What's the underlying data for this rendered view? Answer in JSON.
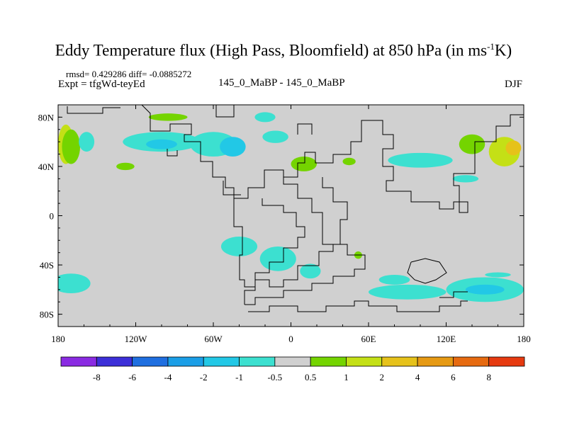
{
  "title": {
    "main": "Eddy Temperature flux (High Pass, Bloomfield) at 850 hPa (in ms",
    "sup": "-1",
    "end": "K)"
  },
  "stats": "rmsd= 0.429286 diff= -0.0885272",
  "expt": "Expt = tfgWd-teyEd",
  "diff_label": "145_0_MaBP - 145_0_MaBP",
  "season": "DJF",
  "chart_data": {
    "type": "heatmap",
    "title": "Eddy Temperature flux (High Pass, Bloomfield) at 850 hPa (in ms-1K)",
    "xlabel": "",
    "ylabel": "",
    "x_ticks": [
      {
        "value": -180,
        "label": "180"
      },
      {
        "value": -120,
        "label": "120W"
      },
      {
        "value": -60,
        "label": "60W"
      },
      {
        "value": 0,
        "label": "0"
      },
      {
        "value": 60,
        "label": "60E"
      },
      {
        "value": 120,
        "label": "120E"
      },
      {
        "value": 180,
        "label": "180"
      }
    ],
    "y_ticks": [
      {
        "value": 80,
        "label": "80N"
      },
      {
        "value": 40,
        "label": "40N"
      },
      {
        "value": 0,
        "label": "0"
      },
      {
        "value": -40,
        "label": "40S"
      },
      {
        "value": -80,
        "label": "80S"
      }
    ],
    "xlim": [
      -180,
      180
    ],
    "ylim": [
      -90,
      90
    ],
    "background_color": "#d0d0d0",
    "colorbar": {
      "colors": [
        "#8a2be2",
        "#3c2fd8",
        "#1f6fe0",
        "#1a9ee6",
        "#22c8e6",
        "#3ce0d0",
        "#d0d0d0",
        "#74d400",
        "#c4e016",
        "#e6c21a",
        "#e69a14",
        "#e66a10",
        "#e63a10"
      ],
      "labels": [
        "-8",
        "-6",
        "-4",
        "-2",
        "-1",
        "-0.5",
        "0.5",
        "1",
        "2",
        "4",
        "6",
        "8"
      ]
    },
    "regions": [
      {
        "lon": -174,
        "lat": 58,
        "rlon": 6,
        "rlat": 16,
        "color": "#c4e016"
      },
      {
        "lon": -170,
        "lat": 56,
        "rlon": 7,
        "rlat": 14,
        "color": "#74d400"
      },
      {
        "lon": -158,
        "lat": 60,
        "rlon": 6,
        "rlat": 8,
        "color": "#3ce0d0"
      },
      {
        "lon": -128,
        "lat": 40,
        "rlon": 7,
        "rlat": 3,
        "color": "#74d400"
      },
      {
        "lon": -100,
        "lat": 60,
        "rlon": 30,
        "rlat": 8,
        "color": "#3ce0d0"
      },
      {
        "lon": -100,
        "lat": 58,
        "rlon": 12,
        "rlat": 4,
        "color": "#22c8e6"
      },
      {
        "lon": -60,
        "lat": 58,
        "rlon": 18,
        "rlat": 10,
        "color": "#3ce0d0"
      },
      {
        "lon": -45,
        "lat": 56,
        "rlon": 10,
        "rlat": 8,
        "color": "#22c8e6"
      },
      {
        "lon": -95,
        "lat": 80,
        "rlon": 15,
        "rlat": 3,
        "color": "#74d400"
      },
      {
        "lon": -12,
        "lat": 64,
        "rlon": 10,
        "rlat": 5,
        "color": "#3ce0d0"
      },
      {
        "lon": 10,
        "lat": 42,
        "rlon": 10,
        "rlat": 6,
        "color": "#74d400"
      },
      {
        "lon": 45,
        "lat": 44,
        "rlon": 5,
        "rlat": 3,
        "color": "#74d400"
      },
      {
        "lon": 100,
        "lat": 45,
        "rlon": 25,
        "rlat": 6,
        "color": "#3ce0d0"
      },
      {
        "lon": 140,
        "lat": 58,
        "rlon": 10,
        "rlat": 8,
        "color": "#74d400"
      },
      {
        "lon": 165,
        "lat": 52,
        "rlon": 12,
        "rlat": 12,
        "color": "#c4e016"
      },
      {
        "lon": 172,
        "lat": 55,
        "rlon": 6,
        "rlat": 6,
        "color": "#e6c21a"
      },
      {
        "lon": 135,
        "lat": 30,
        "rlon": 10,
        "rlat": 3,
        "color": "#3ce0d0"
      },
      {
        "lon": -20,
        "lat": 80,
        "rlon": 8,
        "rlat": 4,
        "color": "#3ce0d0"
      },
      {
        "lon": -40,
        "lat": -25,
        "rlon": 14,
        "rlat": 8,
        "color": "#3ce0d0"
      },
      {
        "lon": -10,
        "lat": -35,
        "rlon": 14,
        "rlat": 10,
        "color": "#3ce0d0"
      },
      {
        "lon": 15,
        "lat": -45,
        "rlon": 8,
        "rlat": 6,
        "color": "#3ce0d0"
      },
      {
        "lon": 52,
        "lat": -32,
        "rlon": 3,
        "rlat": 3,
        "color": "#74d400"
      },
      {
        "lon": 80,
        "lat": -52,
        "rlon": 12,
        "rlat": 4,
        "color": "#3ce0d0"
      },
      {
        "lon": 90,
        "lat": -62,
        "rlon": 30,
        "rlat": 6,
        "color": "#3ce0d0"
      },
      {
        "lon": 150,
        "lat": -60,
        "rlon": 30,
        "rlat": 10,
        "color": "#3ce0d0"
      },
      {
        "lon": 150,
        "lat": -60,
        "rlon": 15,
        "rlat": 4,
        "color": "#22c8e6"
      },
      {
        "lon": -170,
        "lat": -55,
        "rlon": 15,
        "rlat": 8,
        "color": "#3ce0d0"
      },
      {
        "lon": 160,
        "lat": -48,
        "rlon": 10,
        "rlat": 2,
        "color": "#3ce0d0"
      }
    ]
  }
}
